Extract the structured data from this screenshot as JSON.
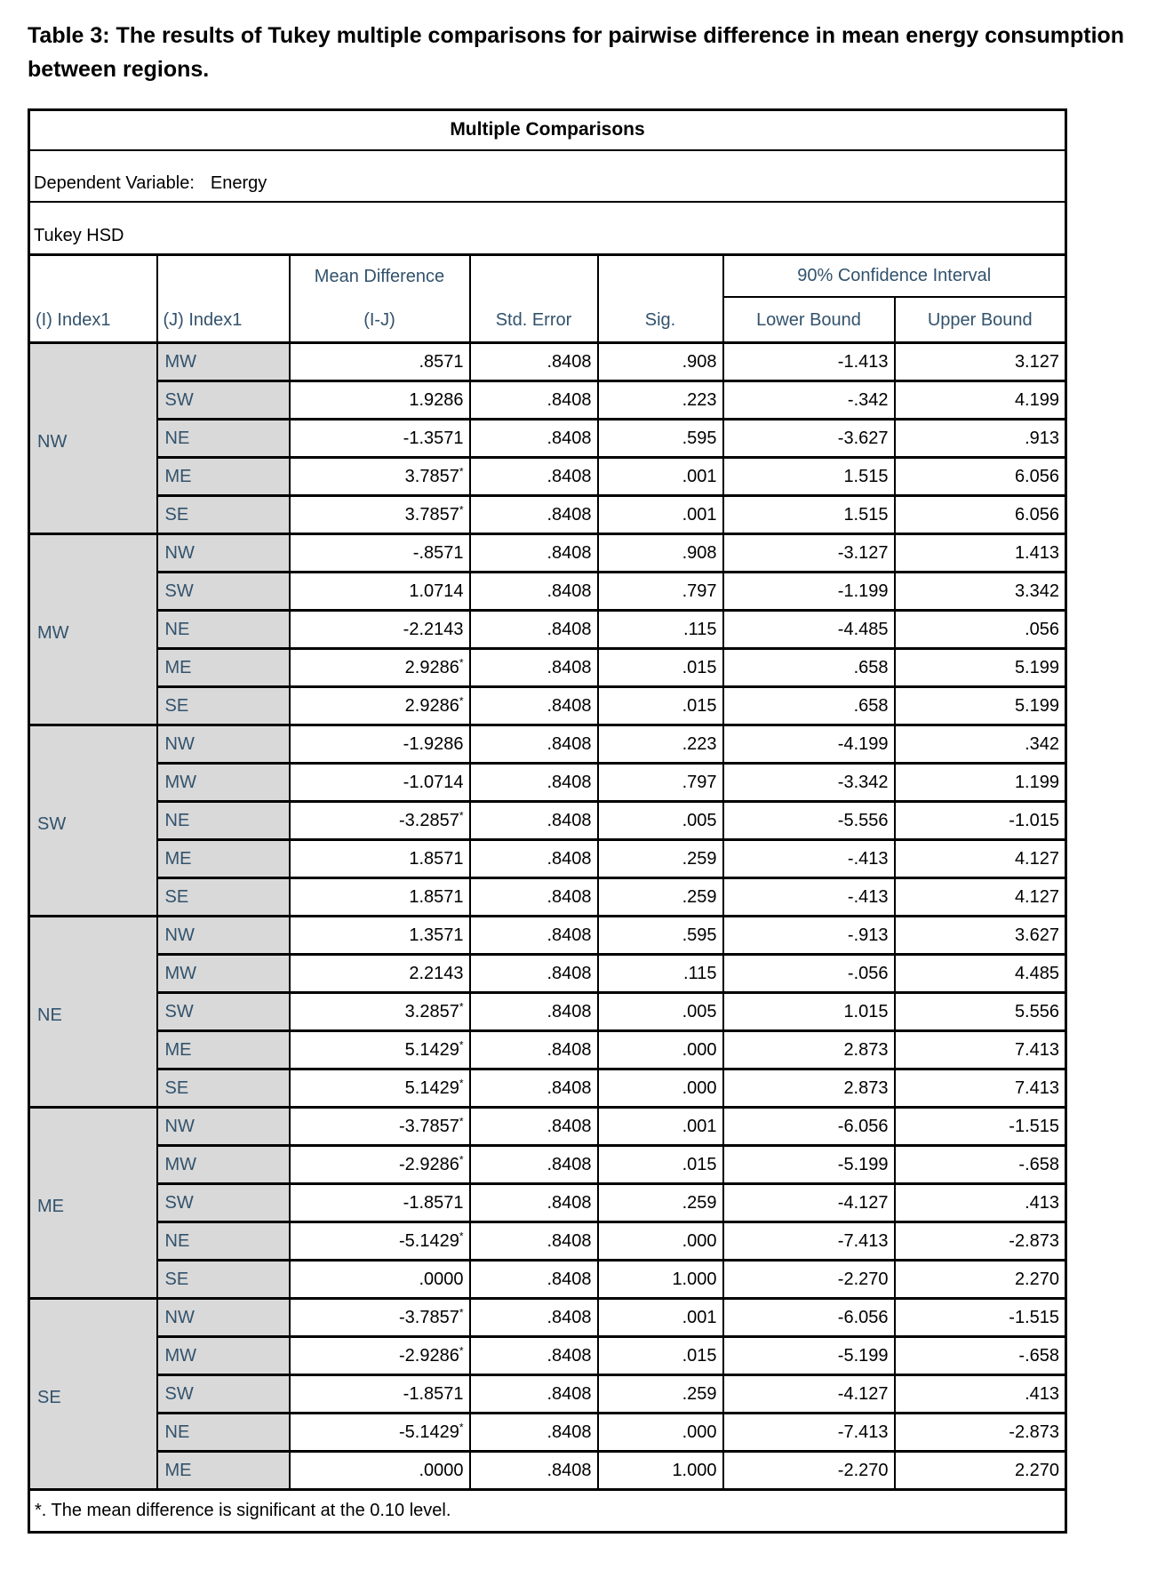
{
  "document": {
    "caption": "Table 3: The results of Tukey multiple comparisons for pairwise difference in mean energy consumption between regions."
  },
  "table": {
    "title": "Multiple Comparisons",
    "dependent_variable": {
      "label": "Dependent Variable:",
      "value": "Energy"
    },
    "method": "Tukey HSD",
    "headers": {
      "col_i": "(I) Index1",
      "col_j": "(J) Index1",
      "mean_diff_line1": "Mean Difference",
      "mean_diff_line2": "(I-J)",
      "std_error": "Std. Error",
      "sig": "Sig.",
      "ci_group": "90% Confidence Interval",
      "lower_bound": "Lower Bound",
      "upper_bound": "Upper Bound"
    },
    "significance_marker": "*",
    "groups": [
      {
        "i": "NW",
        "rows": [
          {
            "j": "MW",
            "mean_difference": ".8571",
            "significant": false,
            "std_error": ".8408",
            "sig": ".908",
            "lower_bound": "-1.413",
            "upper_bound": "3.127"
          },
          {
            "j": "SW",
            "mean_difference": "1.9286",
            "significant": false,
            "std_error": ".8408",
            "sig": ".223",
            "lower_bound": "-.342",
            "upper_bound": "4.199"
          },
          {
            "j": "NE",
            "mean_difference": "-1.3571",
            "significant": false,
            "std_error": ".8408",
            "sig": ".595",
            "lower_bound": "-3.627",
            "upper_bound": ".913"
          },
          {
            "j": "ME",
            "mean_difference": "3.7857",
            "significant": true,
            "std_error": ".8408",
            "sig": ".001",
            "lower_bound": "1.515",
            "upper_bound": "6.056"
          },
          {
            "j": "SE",
            "mean_difference": "3.7857",
            "significant": true,
            "std_error": ".8408",
            "sig": ".001",
            "lower_bound": "1.515",
            "upper_bound": "6.056"
          }
        ]
      },
      {
        "i": "MW",
        "rows": [
          {
            "j": "NW",
            "mean_difference": "-.8571",
            "significant": false,
            "std_error": ".8408",
            "sig": ".908",
            "lower_bound": "-3.127",
            "upper_bound": "1.413"
          },
          {
            "j": "SW",
            "mean_difference": "1.0714",
            "significant": false,
            "std_error": ".8408",
            "sig": ".797",
            "lower_bound": "-1.199",
            "upper_bound": "3.342"
          },
          {
            "j": "NE",
            "mean_difference": "-2.2143",
            "significant": false,
            "std_error": ".8408",
            "sig": ".115",
            "lower_bound": "-4.485",
            "upper_bound": ".056"
          },
          {
            "j": "ME",
            "mean_difference": "2.9286",
            "significant": true,
            "std_error": ".8408",
            "sig": ".015",
            "lower_bound": ".658",
            "upper_bound": "5.199"
          },
          {
            "j": "SE",
            "mean_difference": "2.9286",
            "significant": true,
            "std_error": ".8408",
            "sig": ".015",
            "lower_bound": ".658",
            "upper_bound": "5.199"
          }
        ]
      },
      {
        "i": "SW",
        "rows": [
          {
            "j": "NW",
            "mean_difference": "-1.9286",
            "significant": false,
            "std_error": ".8408",
            "sig": ".223",
            "lower_bound": "-4.199",
            "upper_bound": ".342"
          },
          {
            "j": "MW",
            "mean_difference": "-1.0714",
            "significant": false,
            "std_error": ".8408",
            "sig": ".797",
            "lower_bound": "-3.342",
            "upper_bound": "1.199"
          },
          {
            "j": "NE",
            "mean_difference": "-3.2857",
            "significant": true,
            "std_error": ".8408",
            "sig": ".005",
            "lower_bound": "-5.556",
            "upper_bound": "-1.015"
          },
          {
            "j": "ME",
            "mean_difference": "1.8571",
            "significant": false,
            "std_error": ".8408",
            "sig": ".259",
            "lower_bound": "-.413",
            "upper_bound": "4.127"
          },
          {
            "j": "SE",
            "mean_difference": "1.8571",
            "significant": false,
            "std_error": ".8408",
            "sig": ".259",
            "lower_bound": "-.413",
            "upper_bound": "4.127"
          }
        ]
      },
      {
        "i": "NE",
        "rows": [
          {
            "j": "NW",
            "mean_difference": "1.3571",
            "significant": false,
            "std_error": ".8408",
            "sig": ".595",
            "lower_bound": "-.913",
            "upper_bound": "3.627"
          },
          {
            "j": "MW",
            "mean_difference": "2.2143",
            "significant": false,
            "std_error": ".8408",
            "sig": ".115",
            "lower_bound": "-.056",
            "upper_bound": "4.485"
          },
          {
            "j": "SW",
            "mean_difference": "3.2857",
            "significant": true,
            "std_error": ".8408",
            "sig": ".005",
            "lower_bound": "1.015",
            "upper_bound": "5.556"
          },
          {
            "j": "ME",
            "mean_difference": "5.1429",
            "significant": true,
            "std_error": ".8408",
            "sig": ".000",
            "lower_bound": "2.873",
            "upper_bound": "7.413"
          },
          {
            "j": "SE",
            "mean_difference": "5.1429",
            "significant": true,
            "std_error": ".8408",
            "sig": ".000",
            "lower_bound": "2.873",
            "upper_bound": "7.413"
          }
        ]
      },
      {
        "i": "ME",
        "rows": [
          {
            "j": "NW",
            "mean_difference": "-3.7857",
            "significant": true,
            "std_error": ".8408",
            "sig": ".001",
            "lower_bound": "-6.056",
            "upper_bound": "-1.515"
          },
          {
            "j": "MW",
            "mean_difference": "-2.9286",
            "significant": true,
            "std_error": ".8408",
            "sig": ".015",
            "lower_bound": "-5.199",
            "upper_bound": "-.658"
          },
          {
            "j": "SW",
            "mean_difference": "-1.8571",
            "significant": false,
            "std_error": ".8408",
            "sig": ".259",
            "lower_bound": "-4.127",
            "upper_bound": ".413"
          },
          {
            "j": "NE",
            "mean_difference": "-5.1429",
            "significant": true,
            "std_error": ".8408",
            "sig": ".000",
            "lower_bound": "-7.413",
            "upper_bound": "-2.873"
          },
          {
            "j": "SE",
            "mean_difference": ".0000",
            "significant": false,
            "std_error": ".8408",
            "sig": "1.000",
            "lower_bound": "-2.270",
            "upper_bound": "2.270"
          }
        ]
      },
      {
        "i": "SE",
        "rows": [
          {
            "j": "NW",
            "mean_difference": "-3.7857",
            "significant": true,
            "std_error": ".8408",
            "sig": ".001",
            "lower_bound": "-6.056",
            "upper_bound": "-1.515"
          },
          {
            "j": "MW",
            "mean_difference": "-2.9286",
            "significant": true,
            "std_error": ".8408",
            "sig": ".015",
            "lower_bound": "-5.199",
            "upper_bound": "-.658"
          },
          {
            "j": "SW",
            "mean_difference": "-1.8571",
            "significant": false,
            "std_error": ".8408",
            "sig": ".259",
            "lower_bound": "-4.127",
            "upper_bound": ".413"
          },
          {
            "j": "NE",
            "mean_difference": "-5.1429",
            "significant": true,
            "std_error": ".8408",
            "sig": ".000",
            "lower_bound": "-7.413",
            "upper_bound": "-2.873"
          },
          {
            "j": "ME",
            "mean_difference": ".0000",
            "significant": false,
            "std_error": ".8408",
            "sig": "1.000",
            "lower_bound": "-2.270",
            "upper_bound": "2.270"
          }
        ]
      }
    ],
    "footnote": "*. The mean difference is significant at the 0.10 level.",
    "colors": {
      "header_text": "#32526c",
      "label_text": "#32526c",
      "shaded_cell_bg": "#d9d9d9",
      "border": "#000000",
      "number_text": "#000000"
    }
  }
}
